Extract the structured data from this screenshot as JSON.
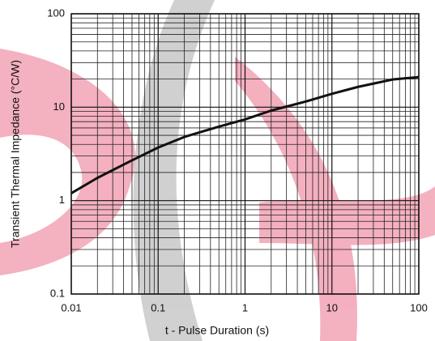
{
  "chart_data": {
    "type": "line",
    "xlabel": "t - Pulse Duration (s)",
    "ylabel": "Transient Thermal Impedance (°C/W)",
    "x": [
      0.01,
      0.02,
      0.05,
      0.1,
      0.2,
      0.5,
      1,
      2,
      5,
      10,
      20,
      50,
      100
    ],
    "values": [
      1.2,
      1.75,
      2.7,
      3.7,
      4.8,
      6.2,
      7.4,
      9.2,
      11.5,
      13.9,
      16.5,
      19.8,
      21
    ],
    "color": "#111111",
    "xscale": "log",
    "yscale": "log",
    "xlim": [
      0.01,
      100
    ],
    "ylim": [
      0.1,
      100
    ],
    "xticks": [
      0.01,
      0.1,
      1,
      10,
      100
    ],
    "yticks": [
      0.1,
      1,
      10,
      100
    ],
    "grid": true,
    "minor_grid": true
  }
}
